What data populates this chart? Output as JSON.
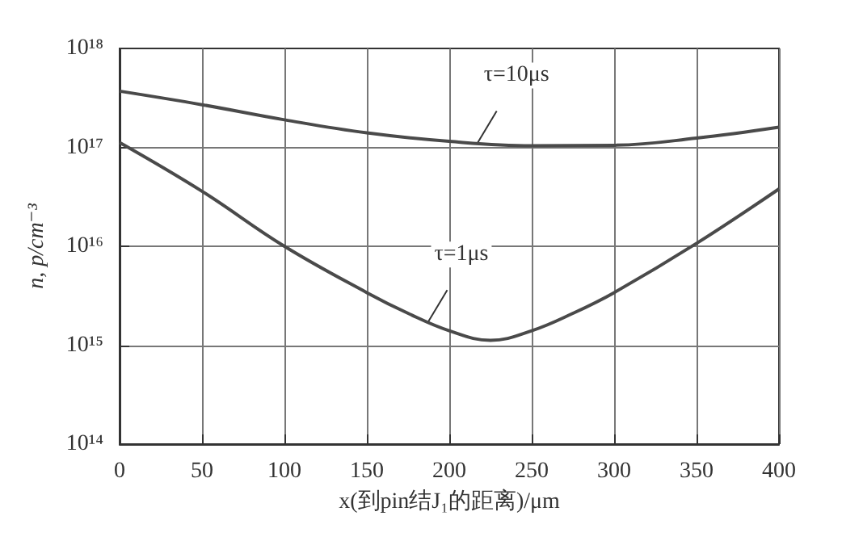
{
  "chart_data": {
    "type": "line",
    "xlabel": "x(到pin结J₁的距离)/μm",
    "ylabel": "n, p/cm⁻³",
    "log": "y",
    "grid": true,
    "marker": "none",
    "line_style": "solid",
    "x": [
      0,
      50,
      100,
      150,
      175,
      200,
      225,
      250,
      275,
      300,
      350,
      400
    ],
    "xlim": [
      0,
      400
    ],
    "xticks": [
      0,
      50,
      100,
      150,
      200,
      250,
      300,
      350,
      400
    ],
    "ylim": [
      100000000000000.0,
      1e+18
    ],
    "yticks": [
      {
        "value": 100000000000000.0,
        "label": "10¹⁴"
      },
      {
        "value": 1000000000000000.0,
        "label": "10¹⁵"
      },
      {
        "value": 1e+16,
        "label": "10¹⁶"
      },
      {
        "value": 1e+17,
        "label": "10¹⁷"
      },
      {
        "value": 1e+18,
        "label": "10¹⁸"
      }
    ],
    "series": [
      {
        "color": "#4a4a4a",
        "x": [
          0,
          50,
          100,
          150,
          200,
          250,
          300,
          350,
          400
        ],
        "values": [
          3.7e+17,
          2.7e+17,
          1.9e+17,
          1.4e+17,
          1.15e+17,
          1.04e+17,
          1.05e+17,
          1.24e+17,
          1.6e+17
        ]
      },
      {
        "color": "#4a4a4a",
        "values": [
          1.12e+17,
          3.6e+16,
          1e+16,
          3400000000000000.0,
          2100000000000000.0,
          1400000000000000.0,
          1120000000000000.0,
          1400000000000000.0,
          2100000000000000.0,
          3400000000000000.0,
          1.07e+16,
          3.8e+16
        ]
      }
    ],
    "annotations": [
      {
        "text": "τ=10μs",
        "x": 217,
        "y": 1.1e+17
      },
      {
        "text": "τ=1μs",
        "x": 187,
        "y": 1700000000000000.0
      }
    ]
  }
}
